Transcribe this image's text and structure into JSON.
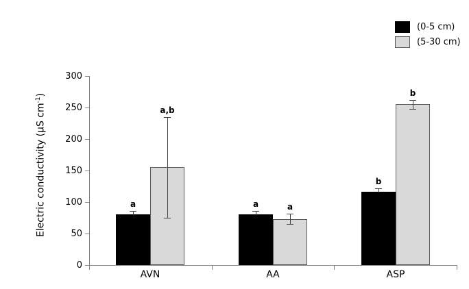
{
  "chart_data": {
    "type": "bar",
    "title": "",
    "categories": [
      "AVN",
      "AA",
      "ASP"
    ],
    "series": [
      {
        "name": "(0-5 cm)",
        "color": "#000000",
        "border": "#000000",
        "values": [
          80,
          80,
          116
        ],
        "error_plus": [
          6,
          6,
          6
        ],
        "error_minus": [
          null,
          null,
          null
        ],
        "letters": [
          "a",
          "a",
          "b"
        ]
      },
      {
        "name": "(5-30 cm)",
        "color": "#d9d9d9",
        "border": "#595959",
        "values": [
          155,
          73,
          255
        ],
        "error_plus": [
          80,
          8,
          7
        ],
        "error_minus": [
          80,
          8,
          7
        ],
        "letters": [
          "a,b",
          "a",
          "b"
        ]
      }
    ],
    "xlabel": "",
    "ylabel": "Electric conductivity (μS cm-1)",
    "ylabel_parts": {
      "main": "Electric conductivity (μS cm",
      "sup": "-1",
      "close": ")"
    },
    "ylim": [
      0,
      300
    ],
    "yticks": [
      0,
      50,
      100,
      150,
      200,
      250,
      300
    ],
    "grid": false,
    "legend_position": "top-right",
    "axis_color": "#808080",
    "error_bar_color": "#404040",
    "background_color": "#ffffff"
  }
}
